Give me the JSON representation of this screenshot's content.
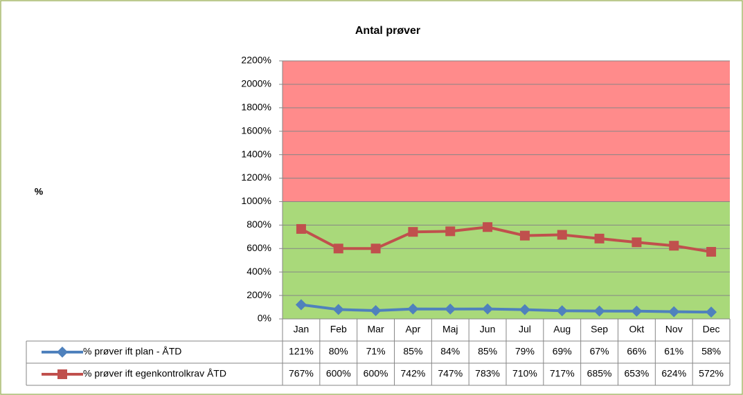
{
  "chart_data": {
    "type": "line",
    "title": "Antal prøver",
    "y_label": "%",
    "categories": [
      "Jan",
      "Feb",
      "Mar",
      "Apr",
      "Maj",
      "Jun",
      "Jul",
      "Aug",
      "Sep",
      "Okt",
      "Nov",
      "Dec"
    ],
    "series": [
      {
        "name": "% prøver ift plan - ÅTD",
        "color": "#4f81bd",
        "marker": "diamond",
        "values": [
          121,
          80,
          71,
          85,
          84,
          85,
          79,
          69,
          67,
          66,
          61,
          58
        ],
        "value_labels": [
          "121%",
          "80%",
          "71%",
          "85%",
          "84%",
          "85%",
          "79%",
          "69%",
          "67%",
          "66%",
          "61%",
          "58%"
        ]
      },
      {
        "name": "% prøver ift egenkontrolkrav ÅTD",
        "color": "#c0504d",
        "marker": "square",
        "values": [
          767,
          600,
          600,
          742,
          747,
          783,
          710,
          717,
          685,
          653,
          624,
          572
        ],
        "value_labels": [
          "767%",
          "600%",
          "600%",
          "742%",
          "747%",
          "783%",
          "710%",
          "717%",
          "685%",
          "653%",
          "624%",
          "572%"
        ]
      }
    ],
    "bands": [
      {
        "from": 0,
        "to": 1000,
        "color": "#a9d97a"
      },
      {
        "from": 1000,
        "to": 2200,
        "color": "#ff8b8b"
      }
    ],
    "ylim": [
      0,
      2200
    ],
    "yticks": [
      {
        "value": 0,
        "label": "0%"
      },
      {
        "value": 200,
        "label": "200%"
      },
      {
        "value": 400,
        "label": "400%"
      },
      {
        "value": 600,
        "label": "600%"
      },
      {
        "value": 800,
        "label": "800%"
      },
      {
        "value": 1000,
        "label": "1000%"
      },
      {
        "value": 1200,
        "label": "1200%"
      },
      {
        "value": 1400,
        "label": "1400%"
      },
      {
        "value": 1600,
        "label": "1600%"
      },
      {
        "value": 1800,
        "label": "1800%"
      },
      {
        "value": 2000,
        "label": "2000%"
      },
      {
        "value": 2200,
        "label": "2200%"
      }
    ],
    "grid": true,
    "data_table": true
  }
}
